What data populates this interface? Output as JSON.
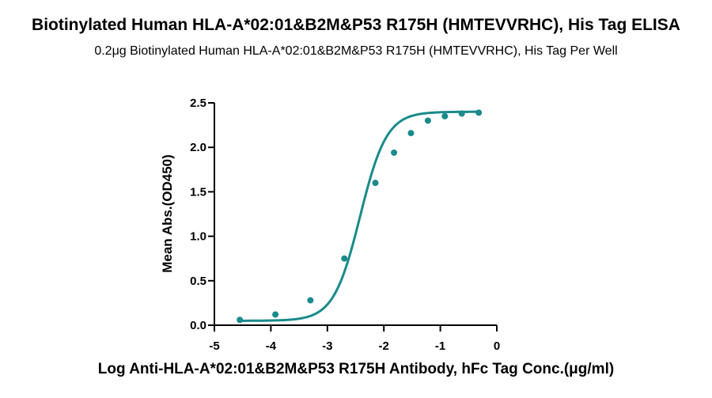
{
  "chart_data": {
    "type": "line",
    "title": "Biotinylated Human HLA-A*02:01&B2M&P53 R175H (HMTEVVRHC), His Tag ELISA",
    "subtitle": "0.2μg Biotinylated Human HLA-A*02:01&B2M&P53 R175H (HMTEVVRHC), His Tag Per Well",
    "xlabel": "Log Anti-HLA-A*02:01&B2M&P53 R175H Antibody, hFc Tag Conc.(μg/ml)",
    "ylabel": "Mean Abs.(OD450)",
    "xlim": [
      -5,
      0
    ],
    "ylim": [
      0,
      2.5
    ],
    "x_ticks": [
      -5,
      -4,
      -3,
      -2,
      -1,
      0
    ],
    "x_tick_labels": [
      "-5",
      "-4",
      "-3",
      "-2",
      "-1",
      "0"
    ],
    "y_ticks": [
      0,
      0.5,
      1.0,
      1.5,
      2.0,
      2.5
    ],
    "y_tick_labels": [
      "0.0",
      "0.5",
      "1.0",
      "1.5",
      "2.0",
      "2.5"
    ],
    "grid": false,
    "legend": "none",
    "color": "#1a8a8a",
    "series": [
      {
        "x": [
          -4.55,
          -3.92,
          -3.3,
          -2.7,
          -2.15,
          -1.82,
          -1.52,
          -1.22,
          -0.92,
          -0.62,
          -0.32
        ],
        "y": [
          0.06,
          0.12,
          0.28,
          0.75,
          1.6,
          1.94,
          2.16,
          2.3,
          2.35,
          2.38,
          2.39
        ]
      }
    ]
  }
}
